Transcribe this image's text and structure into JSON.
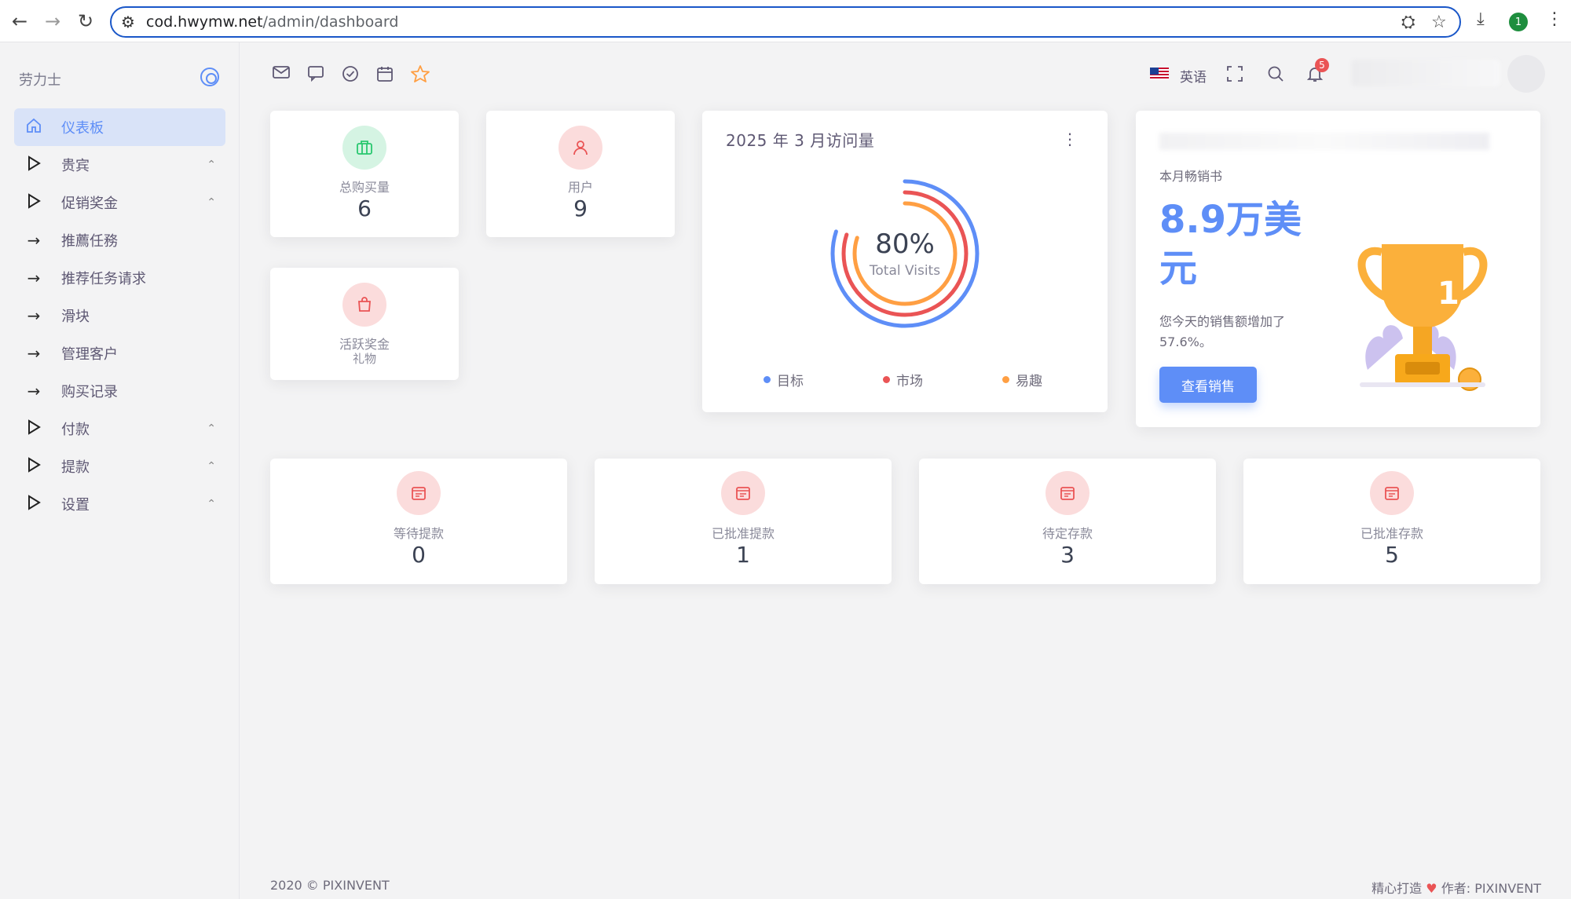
{
  "browser": {
    "url_host": "cod.hwymw.net",
    "url_path": "/admin/dashboard",
    "profile_initial": "1"
  },
  "sidebar": {
    "brand": "劳力士",
    "items": [
      {
        "label": "仪表板",
        "icon": "home-icon",
        "active": true
      },
      {
        "label": "贵宾",
        "icon": "play-icon",
        "chevron": true
      },
      {
        "label": "促销奖金",
        "icon": "play-icon",
        "chevron": true
      },
      {
        "label": "推薦任務",
        "icon": "arrow-right-icon"
      },
      {
        "label": "推荐任务请求",
        "icon": "arrow-right-icon"
      },
      {
        "label": "滑块",
        "icon": "arrow-right-icon"
      },
      {
        "label": "管理客户",
        "icon": "arrow-right-icon"
      },
      {
        "label": "购买记录",
        "icon": "arrow-right-icon"
      },
      {
        "label": "付款",
        "icon": "play-icon",
        "chevron": true
      },
      {
        "label": "提款",
        "icon": "play-icon",
        "chevron": true
      },
      {
        "label": "设置",
        "icon": "play-icon",
        "chevron": true
      }
    ]
  },
  "header": {
    "language": "英语",
    "notification_count": "5"
  },
  "stats_top": {
    "total_purchase": {
      "label": "总购买量",
      "value": "6"
    },
    "users": {
      "label": "用户",
      "value": "9"
    },
    "active_bonus": {
      "label": "活跃奖金",
      "sublabel": "礼物"
    }
  },
  "visits_chart": {
    "title": "2025 年 3 月访问量",
    "center_value": "80%",
    "center_label": "Total Visits",
    "legend": [
      {
        "label": "目标",
        "color": "#5e8ef7"
      },
      {
        "label": "市场",
        "color": "#ea5455"
      },
      {
        "label": "易趣",
        "color": "#ff9f43"
      }
    ]
  },
  "sales": {
    "subtitle": "本月畅销书",
    "amount": "8.9万美元",
    "description": "您今天的销售额增加了 57.6%。",
    "button": "查看销售",
    "trophy_number": "1"
  },
  "stats_bottom": [
    {
      "label": "等待提款",
      "value": "0"
    },
    {
      "label": "已批准提款",
      "value": "1"
    },
    {
      "label": "待定存款",
      "value": "3"
    },
    {
      "label": "已批准存款",
      "value": "5"
    }
  ],
  "footer": {
    "copyright": "2020 © PIXINVENT",
    "crafted": "精心打造",
    "author_label": "作者:",
    "author": "PIXINVENT"
  },
  "colors": {
    "primary": "#5e8ef7",
    "danger": "#ea5455",
    "warning": "#ff9f43",
    "success": "#28c76f"
  }
}
